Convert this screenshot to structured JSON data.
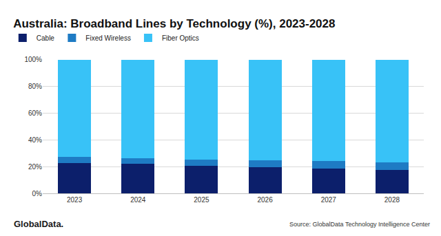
{
  "chart_data": {
    "type": "bar",
    "title": "Australia: Broadband Lines by Technology (%), 2023-2028",
    "stacked": true,
    "grid": true,
    "legend": "top left",
    "categories": [
      "2023",
      "2024",
      "2025",
      "2026",
      "2027",
      "2028"
    ],
    "series": [
      {
        "name": "Cable",
        "color": "#0c1f6b",
        "values": [
          22.5,
          22,
          20.5,
          19.5,
          18.5,
          17.5
        ]
      },
      {
        "name": "Fixed Wireless",
        "color": "#1e7bc4",
        "values": [
          5,
          4.5,
          5,
          5,
          5.5,
          5.5
        ]
      },
      {
        "name": "Fiber Optics",
        "color": "#38c2f7",
        "values": [
          72.5,
          73.5,
          74.5,
          75.5,
          76,
          77
        ]
      }
    ],
    "ylim": [
      0,
      100
    ],
    "yticks": [
      {
        "value": 0,
        "label": "0%"
      },
      {
        "value": 20,
        "label": "20%"
      },
      {
        "value": 40,
        "label": "40%"
      },
      {
        "value": 60,
        "label": "60%"
      },
      {
        "value": 80,
        "label": "80%"
      },
      {
        "value": 100,
        "label": "100%"
      }
    ],
    "annotations": [
      "Source: GlobalData Technology Intelligence Center",
      "GlobalData."
    ]
  }
}
